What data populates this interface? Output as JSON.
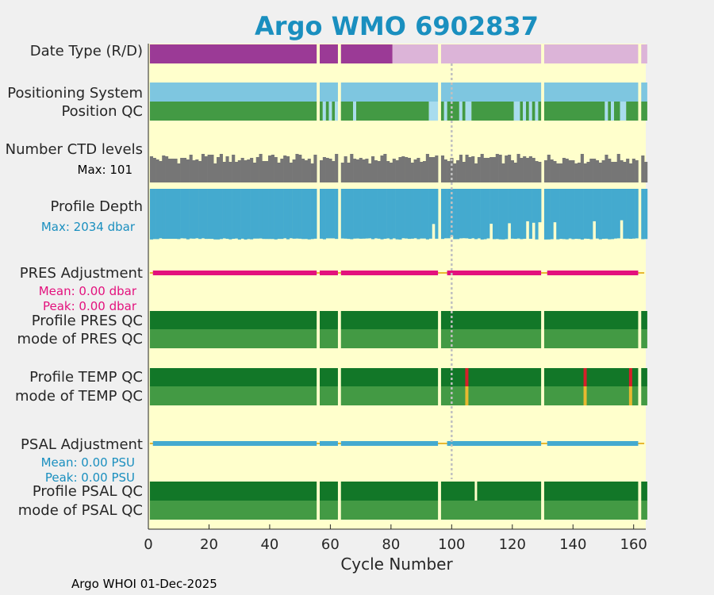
{
  "chart_data": {
    "type": "bar",
    "title": "Argo WMO 6902837",
    "xlabel": "Cycle Number",
    "xlim": [
      0,
      164
    ],
    "x_ticks": [
      0,
      20,
      40,
      60,
      80,
      100,
      120,
      140,
      160
    ],
    "footer": "Argo WHOI 01-Dec-2025",
    "reference_cycle": 100,
    "gap_cycles": [
      56,
      63,
      96,
      130,
      162
    ],
    "colors": {
      "background": "#ffffcc",
      "title": "#1a8fbf",
      "realtime": "#9b3a96",
      "delayed": "#dcb4d8",
      "positioning": "#7ec6e0",
      "position_qc_good": "#439a44",
      "position_qc_gap": "#a8dcee",
      "ctd_levels": "#767676",
      "profile_depth": "#44aacf",
      "pres_adjustment": "#e3117d",
      "psal_adjustment": "#44aacf",
      "adjustment_gap": "#e8b830",
      "profile_qc": "#127728",
      "mode_qc": "#439a44",
      "flag_bad": "#d6202a",
      "flag_questionable": "#e8b830",
      "reference_line": "#c0c0c0"
    },
    "rows": {
      "data_type": {
        "label": "Date Type (R/D)",
        "realtime_end_cycle": 80,
        "missing_cycles": [
          56,
          63,
          96,
          130,
          162
        ]
      },
      "positioning_system": {
        "label": "Positioning System",
        "missing_cycles": [
          56,
          63,
          96,
          130,
          162
        ]
      },
      "position_qc": {
        "label": "Position QC",
        "missing_position_cycles": [
          58,
          60,
          62,
          68,
          93,
          94,
          95,
          98,
          103,
          105,
          106,
          121,
          122,
          124,
          126,
          128,
          151,
          153,
          156,
          157,
          162
        ]
      },
      "ctd_levels": {
        "label": "Number CTD levels",
        "max_label": "Max: 101",
        "max": 101
      },
      "profile_depth": {
        "label": "Profile Depth",
        "max_label": "Max: 2034 dbar",
        "max": 2034,
        "deep_anomalies": [
          {
            "cycle": 94,
            "depth": 1410
          },
          {
            "cycle": 113,
            "depth": 1400
          },
          {
            "cycle": 119,
            "depth": 1380
          },
          {
            "cycle": 125,
            "depth": 1300
          },
          {
            "cycle": 127,
            "depth": 1360
          },
          {
            "cycle": 129,
            "depth": 1340
          },
          {
            "cycle": 134,
            "depth": 1340
          },
          {
            "cycle": 147,
            "depth": 1300
          },
          {
            "cycle": 156,
            "depth": 1260
          }
        ]
      },
      "pres_adjustment": {
        "label": "PRES Adjustment",
        "mean_label": "Mean: 0.00 dbar",
        "peak_label": "Peak: 0.00 dbar",
        "segments": [
          [
            2,
            55
          ],
          [
            57,
            62
          ],
          [
            64,
            95
          ],
          [
            99,
            129
          ],
          [
            132,
            161
          ]
        ]
      },
      "profile_pres_qc": {
        "label": "Profile PRES QC",
        "missing_cycles": [
          56,
          63,
          96,
          130,
          162
        ]
      },
      "mode_pres_qc": {
        "label": "mode of PRES QC",
        "missing_cycles": [
          56,
          63,
          96,
          130,
          162
        ]
      },
      "profile_temp_qc": {
        "label": "Profile TEMP QC",
        "missing_cycles": [
          56,
          63,
          96,
          130,
          162
        ],
        "bad_cycles": [
          105,
          144,
          159
        ]
      },
      "mode_temp_qc": {
        "label": "mode of TEMP QC",
        "missing_cycles": [
          56,
          63,
          96,
          130,
          162
        ],
        "questionable_cycles": [
          105,
          144,
          159
        ]
      },
      "psal_adjustment": {
        "label": "PSAL Adjustment",
        "mean_label": "Mean: 0.00 PSU",
        "peak_label": "Peak: 0.00 PSU",
        "segments": [
          [
            2,
            55
          ],
          [
            57,
            62
          ],
          [
            64,
            95
          ],
          [
            99,
            129
          ],
          [
            132,
            161
          ]
        ]
      },
      "profile_psal_qc": {
        "label": "Profile PSAL QC",
        "missing_cycles": [
          56,
          63,
          96,
          130,
          162
        ],
        "interruption_cycles": [
          108
        ]
      },
      "mode_psal_qc": {
        "label": "mode of PSAL QC",
        "missing_cycles": [
          56,
          63,
          96,
          130,
          162
        ]
      }
    }
  }
}
